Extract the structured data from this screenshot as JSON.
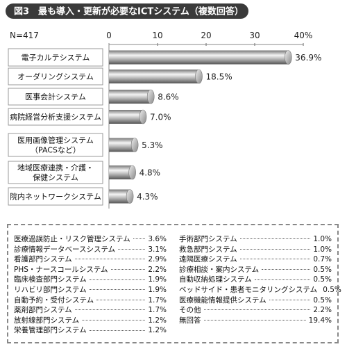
{
  "chart_data": {
    "type": "bar",
    "title": "図3　最も導入・更新が必要なICTシステム（複数回答）",
    "note": "N=417",
    "categories": [
      "電子カルテシステム",
      "オーダリングシステム",
      "医事会計システム",
      "病院経営分析支援システム",
      "医用画像管理システム\n（PACSなど）",
      "地域医療連携・介護・\n保健システム",
      "院内ネットワークシステム"
    ],
    "values": [
      36.9,
      18.5,
      8.6,
      7.0,
      5.3,
      4.8,
      4.3
    ],
    "value_labels": [
      "36.9%",
      "18.5%",
      "8.6%",
      "7.0%",
      "5.3%",
      "4.8%",
      "4.3%"
    ],
    "color": "#9a9a9a",
    "xlim": [
      0,
      40
    ],
    "xticks": [
      0,
      10,
      20,
      30,
      {
        "value": 40,
        "label": "40%"
      }
    ],
    "grid": false
  },
  "other_items": {
    "left": [
      [
        "医療過誤防止・リスク管理システム",
        "3.6%"
      ],
      [
        "診療情報データベースシステム",
        "3.1%"
      ],
      [
        "看護部門システム",
        "2.9%"
      ],
      [
        "PHS・ナースコールシステム",
        "2.2%"
      ],
      [
        "臨床検査部門システム",
        "1.9%"
      ],
      [
        "リハビリ部門システム",
        "1.9%"
      ],
      [
        "自動予約・受付システム",
        "1.7%"
      ],
      [
        "薬剤部門システム",
        "1.7%"
      ],
      [
        "放射線部門システム",
        "1.2%"
      ],
      [
        "栄養管理部門システム",
        "1.2%"
      ]
    ],
    "right": [
      [
        "手術部門システム",
        "1.0%"
      ],
      [
        "救急部門システム",
        "1.0%"
      ],
      [
        "遠隔医療システム",
        "0.7%"
      ],
      [
        "診療相談・案内システム",
        "0.5%"
      ],
      [
        "自動収納処理システム",
        "0.5%"
      ],
      [
        "ベッドサイド・患者モニタリングシステム",
        "0.5%"
      ],
      [
        "医療機能情報提供システム",
        "0.5%"
      ],
      [
        "その他",
        "2.2%"
      ],
      [
        "無回答",
        "19.4%"
      ]
    ]
  }
}
